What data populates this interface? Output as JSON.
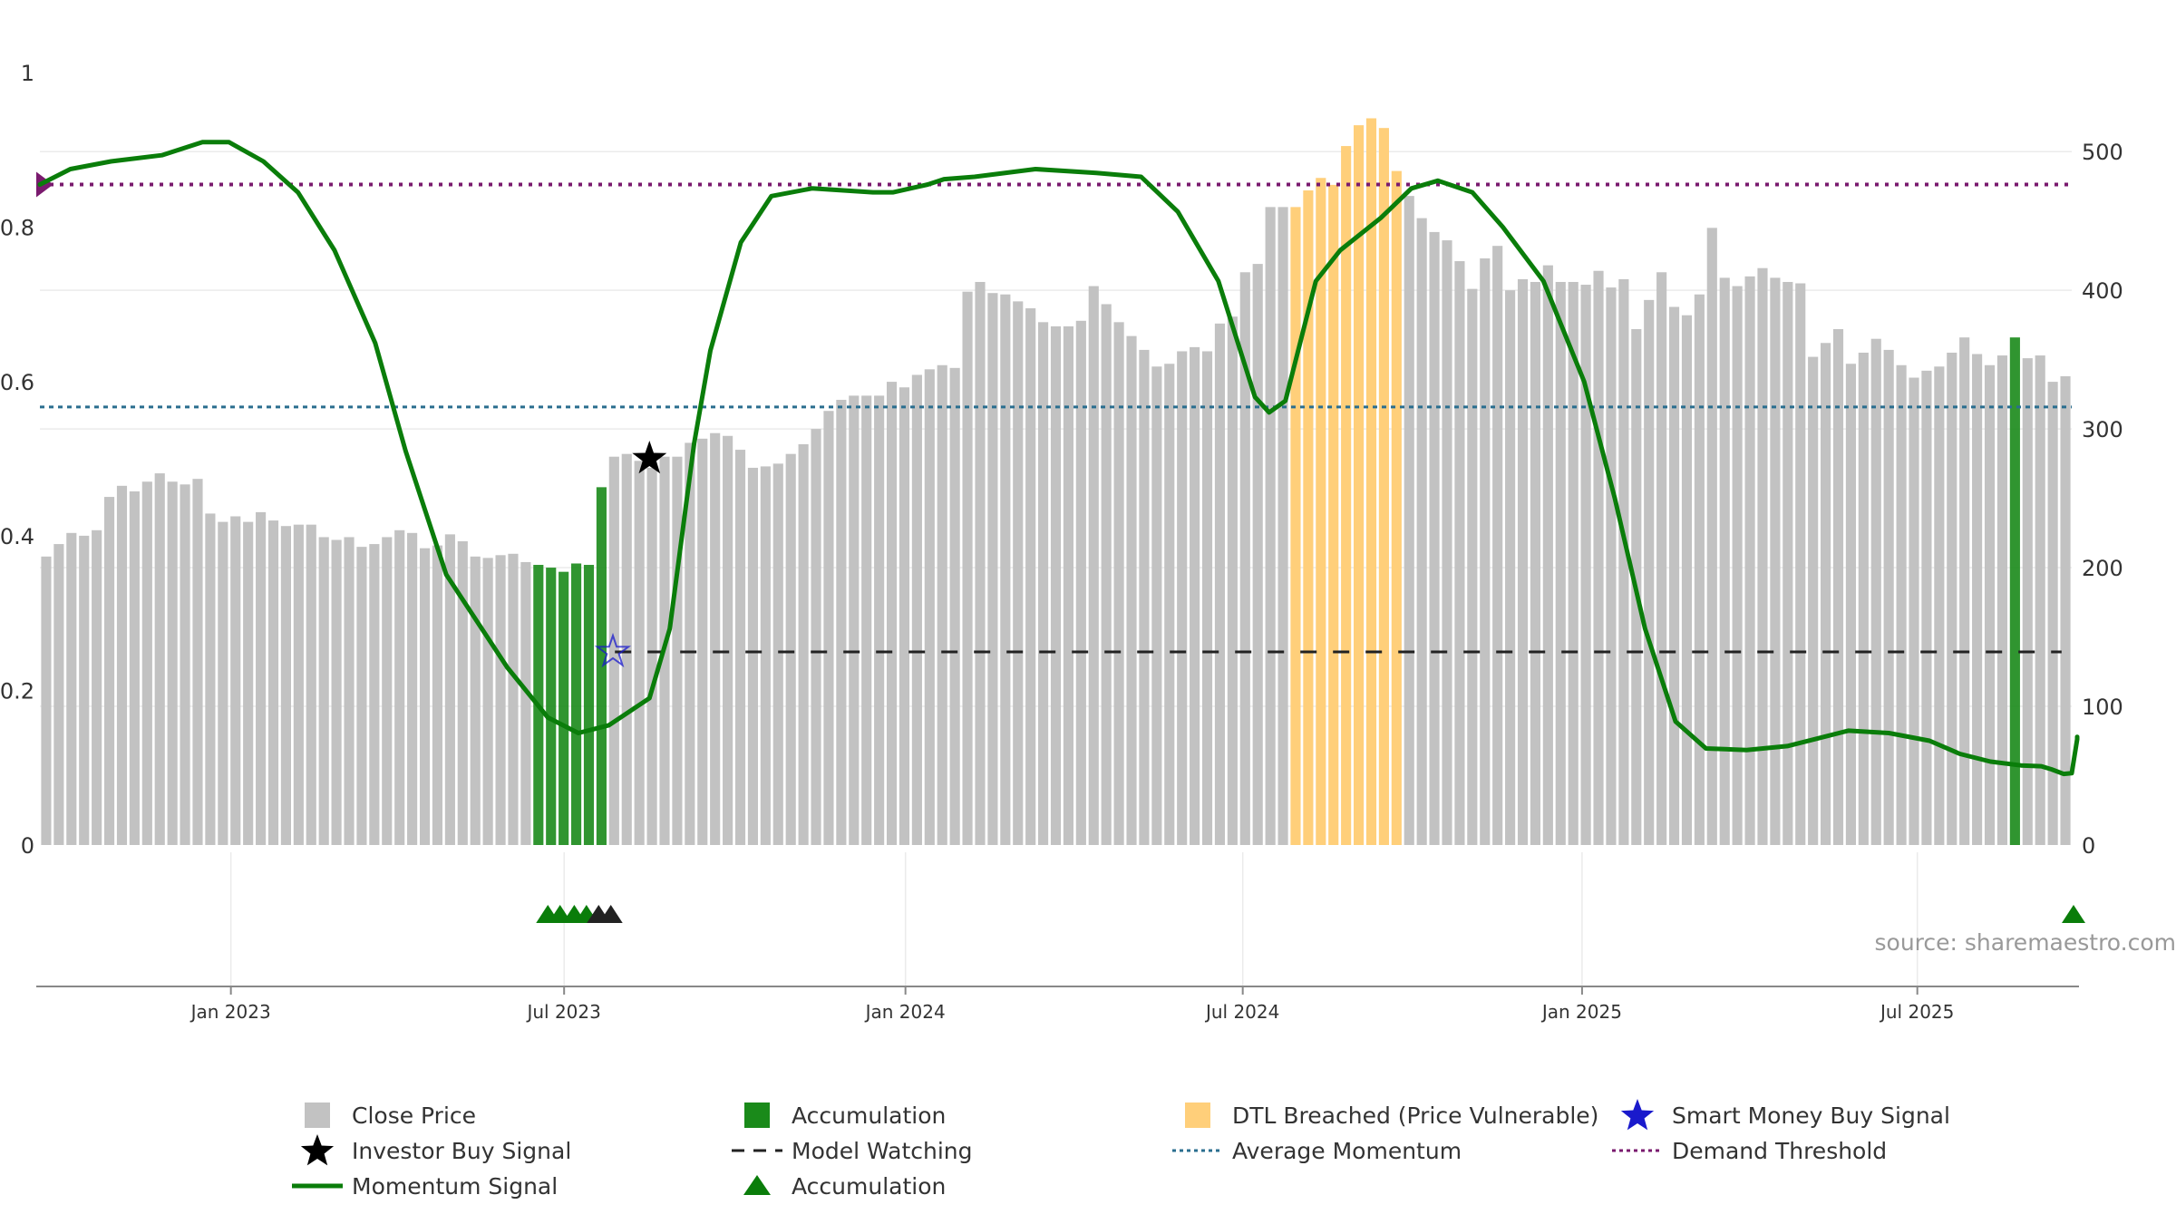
{
  "source_text": "source: sharemaestro.com",
  "colors": {
    "close_price": "#c2c2c2",
    "accumulation": "#1a8a1a",
    "dtl_breached": "#ffcf7a",
    "momentum": "#0a7d0a",
    "average_momentum": "#2a6e8f",
    "demand_threshold": "#7a1a6e",
    "model_watching": "#222222",
    "investor_signal": "#000000",
    "smart_money_signal": "#1a1acc"
  },
  "legend": [
    {
      "key": "close_price",
      "label": "Close Price",
      "symbol": "square"
    },
    {
      "key": "accumulation",
      "label": "Accumulation",
      "symbol": "square"
    },
    {
      "key": "dtl_breached",
      "label": "DTL Breached (Price Vulnerable)",
      "symbol": "square"
    },
    {
      "key": "smart_money_signal",
      "label": "Smart Money Buy Signal",
      "symbol": "star"
    },
    {
      "key": "investor_signal",
      "label": "Investor Buy Signal",
      "symbol": "star"
    },
    {
      "key": "model_watching",
      "label": "Model Watching",
      "symbol": "dash"
    },
    {
      "key": "average_momentum",
      "label": "Average Momentum",
      "symbol": "dot"
    },
    {
      "key": "demand_threshold",
      "label": "Demand Threshold",
      "symbol": "dot"
    },
    {
      "key": "momentum",
      "label": "Momentum Signal",
      "symbol": "line"
    },
    {
      "key": "accumulation_marker",
      "label": "Accumulation",
      "symbol": "triangle"
    }
  ],
  "chart_data": {
    "type": "bar",
    "x_ticks": [
      "Jan 2023",
      "Jul 2023",
      "Jan 2024",
      "Jul 2024",
      "Jan 2025",
      "Jul 2025"
    ],
    "left_axis": {
      "ticks": [
        "0",
        "0.2",
        "0.4",
        "0.6",
        "0.8",
        "1"
      ],
      "range": [
        0,
        1
      ]
    },
    "right_axis": {
      "ticks": [
        "0",
        "100",
        "200",
        "300",
        "400",
        "500"
      ],
      "range": [
        0,
        557
      ]
    },
    "average_momentum": 0.567,
    "demand_threshold": 0.855,
    "model_watching_level": 0.25,
    "close_prices": [
      208,
      217,
      225,
      223,
      227,
      251,
      259,
      255,
      262,
      268,
      262,
      260,
      264,
      239,
      233,
      237,
      233,
      240,
      234,
      230,
      231,
      231,
      222,
      220,
      222,
      215,
      217,
      222,
      227,
      225,
      214,
      216,
      224,
      219,
      208,
      207,
      209,
      210,
      204,
      202,
      200,
      197,
      203,
      202,
      258,
      280,
      282,
      277,
      272,
      280,
      280,
      290,
      293,
      297,
      295,
      285,
      272,
      273,
      275,
      282,
      289,
      300,
      313,
      321,
      324,
      324,
      324,
      334,
      330,
      339,
      343,
      346,
      344,
      399,
      406,
      398,
      397,
      392,
      387,
      377,
      374,
      374,
      378,
      403,
      390,
      377,
      367,
      357,
      345,
      347,
      356,
      359,
      356,
      376,
      381,
      413,
      419,
      460,
      460,
      460,
      472,
      481,
      476,
      504,
      519,
      524,
      517,
      486,
      468,
      452,
      442,
      436,
      421,
      401,
      423,
      432,
      400,
      408,
      406,
      418,
      406,
      406,
      404,
      414,
      402,
      408,
      372,
      393,
      413,
      388,
      382,
      397,
      445,
      409,
      403,
      410,
      416,
      409,
      406,
      405,
      352,
      362,
      372,
      347,
      355,
      365,
      357,
      346,
      337,
      342,
      345,
      355,
      366,
      354,
      346,
      353,
      366,
      351,
      353,
      334,
      338
    ],
    "bar_segments": [
      {
        "start": 0,
        "end": 38,
        "state": "close_price"
      },
      {
        "start": 39,
        "end": 44,
        "state": "accumulation"
      },
      {
        "start": 45,
        "end": 98,
        "state": "close_price"
      },
      {
        "start": 99,
        "end": 107,
        "state": "dtl_breached"
      },
      {
        "start": 108,
        "end": 155,
        "state": "close_price"
      },
      {
        "start": 156,
        "end": 156,
        "state": "accumulation"
      }
    ],
    "momentum": [
      [
        0,
        0.855
      ],
      [
        0.015,
        0.875
      ],
      [
        0.035,
        0.885
      ],
      [
        0.06,
        0.893
      ],
      [
        0.08,
        0.91
      ],
      [
        0.093,
        0.91
      ],
      [
        0.11,
        0.885
      ],
      [
        0.127,
        0.845
      ],
      [
        0.145,
        0.77
      ],
      [
        0.165,
        0.65
      ],
      [
        0.18,
        0.51
      ],
      [
        0.2,
        0.35
      ],
      [
        0.23,
        0.23
      ],
      [
        0.25,
        0.165
      ],
      [
        0.265,
        0.145
      ],
      [
        0.28,
        0.155
      ],
      [
        0.3,
        0.19
      ],
      [
        0.31,
        0.28
      ],
      [
        0.322,
        0.52
      ],
      [
        0.33,
        0.64
      ],
      [
        0.345,
        0.78
      ],
      [
        0.36,
        0.84
      ],
      [
        0.38,
        0.85
      ],
      [
        0.41,
        0.845
      ],
      [
        0.42,
        0.845
      ],
      [
        0.437,
        0.855
      ],
      [
        0.445,
        0.862
      ],
      [
        0.46,
        0.865
      ],
      [
        0.49,
        0.875
      ],
      [
        0.52,
        0.87
      ],
      [
        0.542,
        0.865
      ],
      [
        0.56,
        0.82
      ],
      [
        0.58,
        0.73
      ],
      [
        0.598,
        0.58
      ],
      [
        0.605,
        0.56
      ],
      [
        0.613,
        0.575
      ],
      [
        0.628,
        0.73
      ],
      [
        0.64,
        0.77
      ],
      [
        0.66,
        0.812
      ],
      [
        0.675,
        0.85
      ],
      [
        0.688,
        0.86
      ],
      [
        0.705,
        0.845
      ],
      [
        0.72,
        0.8
      ],
      [
        0.74,
        0.73
      ],
      [
        0.76,
        0.6
      ],
      [
        0.775,
        0.45
      ],
      [
        0.79,
        0.28
      ],
      [
        0.805,
        0.16
      ],
      [
        0.82,
        0.125
      ],
      [
        0.84,
        0.123
      ],
      [
        0.86,
        0.128
      ],
      [
        0.875,
        0.138
      ],
      [
        0.89,
        0.148
      ],
      [
        0.91,
        0.145
      ],
      [
        0.93,
        0.135
      ],
      [
        0.945,
        0.118
      ],
      [
        0.96,
        0.108
      ],
      [
        0.975,
        0.103
      ],
      [
        0.985,
        0.102
      ],
      [
        0.99,
        0.098
      ],
      [
        0.996,
        0.092
      ],
      [
        1.0,
        0.093
      ],
      [
        1.01,
        0.137
      ],
      [
        1.02,
        0.14
      ]
    ],
    "investor_buy_signal": {
      "x_frac": 0.3,
      "value": 0.5
    },
    "smart_money_buy_signal": {
      "x_frac": 0.282,
      "value": 0.25
    },
    "accumulation_markers": [
      0.25,
      0.256,
      0.263,
      0.269
    ],
    "watching_markers": [
      0.275,
      0.281
    ],
    "accumulation_marker_end": [
      1.0
    ]
  }
}
